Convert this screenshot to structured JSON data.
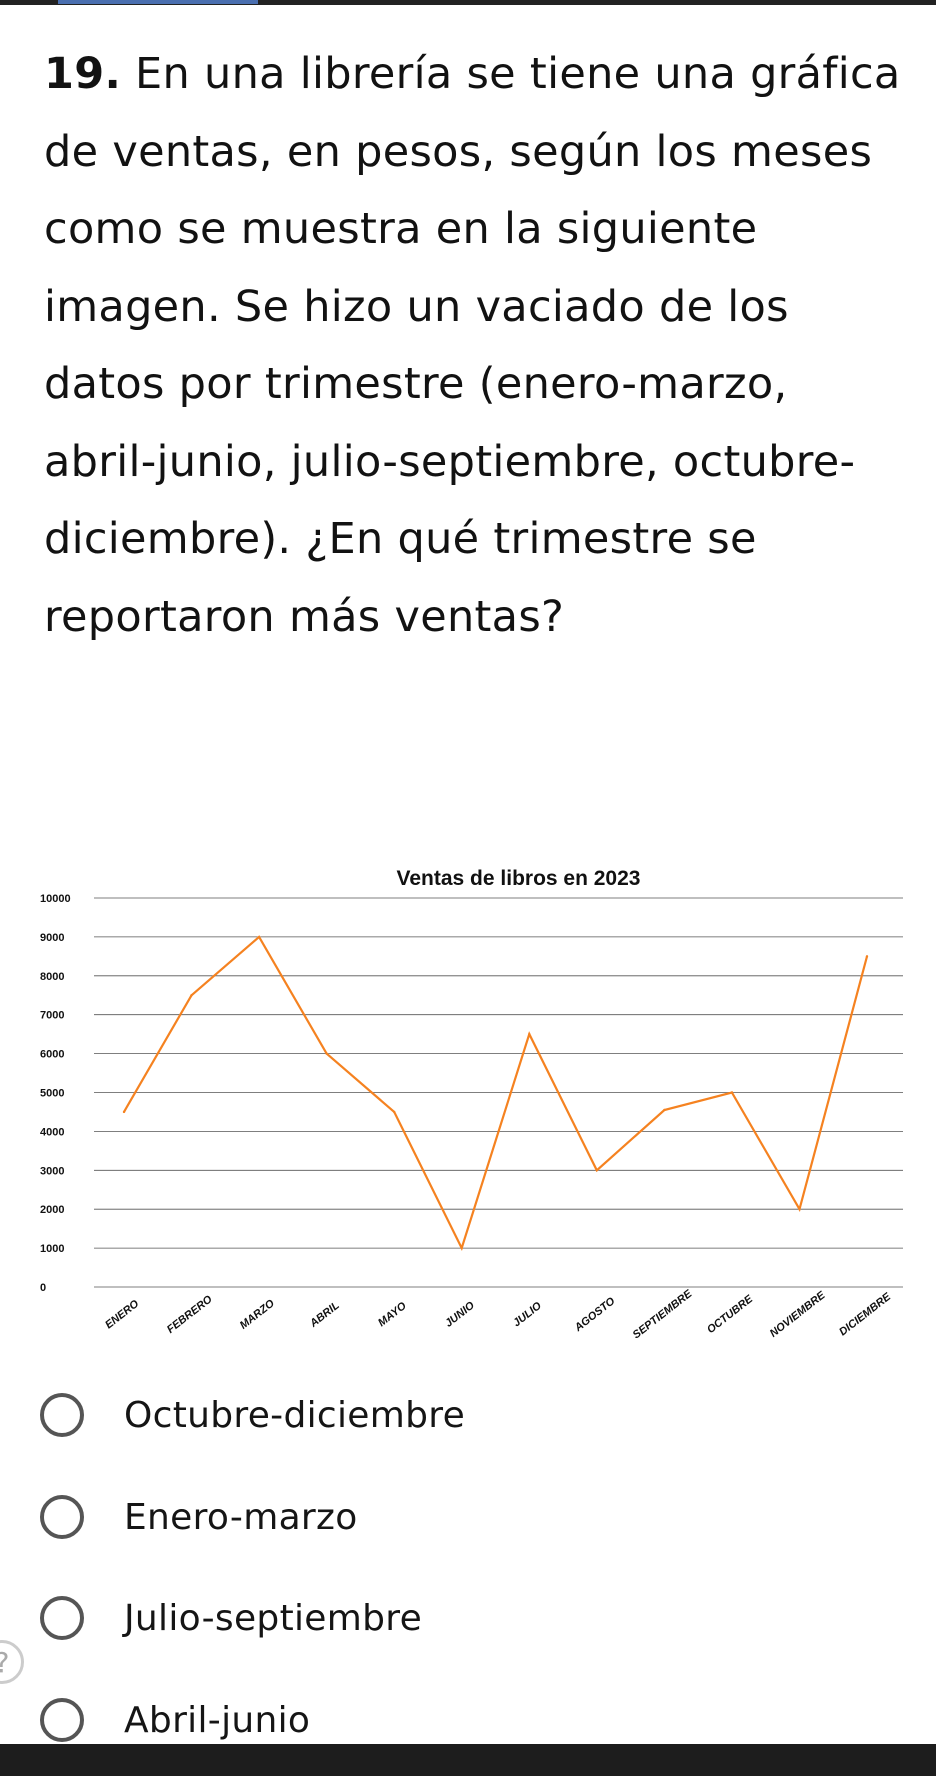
{
  "question": {
    "number": "19.",
    "text": "En una librería se tiene una gráfica de ventas, en pesos, según los meses como se muestra en la siguiente imagen. Se hizo un vaciado de los datos por trimestre (enero-marzo, abril-junio, julio-septiembre, octubre-diciembre). ¿En qué trimestre se reportaron más ventas?"
  },
  "chart_data": {
    "type": "line",
    "title": "Ventas de libros en 2023",
    "categories": [
      "ENERO",
      "FEBRERO",
      "MARZO",
      "ABRIL",
      "MAYO",
      "JUNIO",
      "JULIO",
      "AGOSTO",
      "SEPTIEMBRE",
      "OCTUBRE",
      "NOVIEMBRE",
      "DICIEMBRE"
    ],
    "series": [
      {
        "values": [
          4500,
          7500,
          9000,
          6000,
          4500,
          1000,
          6500,
          3000,
          4550,
          5000,
          2000,
          8500
        ]
      }
    ],
    "yticks": [
      "0",
      "1000",
      "2000",
      "3000",
      "4000",
      "5000",
      "6000",
      "7000",
      "8000",
      "9000",
      "10000"
    ],
    "ylim": [
      0,
      10000
    ],
    "grid": true,
    "line_color": "#f58220"
  },
  "options": [
    {
      "label": "Octubre-diciembre"
    },
    {
      "label": "Enero-marzo"
    },
    {
      "label": "Julio-septiembre"
    },
    {
      "label": "Abril-junio"
    }
  ],
  "help_icon": "?"
}
